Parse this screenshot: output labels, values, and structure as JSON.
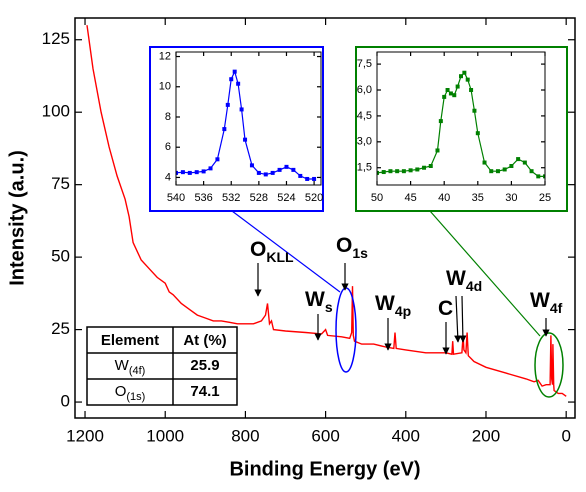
{
  "chart_data": [
    {
      "type": "line",
      "xlabel": "Binding Energy (eV)",
      "ylabel": "Intensity (a.u.)",
      "xlim": [
        1225,
        -22
      ],
      "ylim": [
        -5.5,
        132.5
      ],
      "xticks": [
        1200,
        1000,
        800,
        600,
        400,
        200,
        0
      ],
      "yticks": [
        0,
        25,
        50,
        75,
        100,
        125
      ],
      "series": [
        {
          "color": "#ff0000",
          "x": [
            1195,
            1180,
            1160,
            1140,
            1120,
            1100,
            1090,
            1080,
            1060,
            1040,
            1020,
            1000,
            990,
            980,
            960,
            940,
            920,
            900,
            880,
            860,
            840,
            820,
            800,
            780,
            760,
            750,
            745,
            740,
            735,
            730,
            700,
            650,
            610,
            600,
            595,
            560,
            540,
            535,
            533,
            531,
            528,
            510,
            480,
            450,
            430,
            427,
            424,
            400,
            350,
            300,
            285,
            283,
            281,
            260,
            257,
            255,
            250,
            247,
            244,
            230,
            200,
            150,
            100,
            80,
            70,
            60,
            50,
            40,
            38,
            36,
            34,
            33,
            31,
            30,
            20,
            10,
            0
          ],
          "values": [
            130,
            115,
            100,
            88,
            78,
            70,
            64,
            55,
            49,
            46,
            43,
            41,
            38,
            37,
            34,
            32,
            30,
            29,
            28,
            28,
            27.5,
            27,
            27,
            27,
            28,
            30,
            34,
            27,
            28,
            25,
            24.5,
            24,
            23.5,
            25,
            23,
            22.5,
            22,
            24,
            40,
            23,
            21,
            20,
            20,
            19,
            18.5,
            24,
            18.5,
            18,
            17,
            17,
            16.5,
            21,
            16.5,
            17,
            23,
            18,
            17,
            24,
            16,
            14,
            12,
            10,
            8,
            7,
            7.5,
            5.5,
            6,
            6,
            23,
            8,
            6,
            20,
            6,
            4,
            3,
            3,
            2
          ]
        }
      ],
      "annotations": [
        {
          "text": "O",
          "sub": "KLL"
        },
        {
          "text": "W",
          "sub": "s"
        },
        {
          "text": "O",
          "sub": "1s"
        },
        {
          "text": "W",
          "sub": "4p"
        },
        {
          "text": "C",
          "sub": null
        },
        {
          "text": "W",
          "sub": "4d"
        },
        {
          "text": "W",
          "sub": "4f"
        }
      ],
      "table": {
        "header": [
          "Element",
          "At (%)"
        ],
        "rows": [
          {
            "element": "W",
            "sub": "(4f)",
            "at": 25.9
          },
          {
            "element": "O",
            "sub": "(1s)",
            "at": 74.1
          }
        ]
      }
    },
    {
      "type": "line",
      "xlim": [
        540,
        519
      ],
      "ylim": [
        3.5,
        12.3
      ],
      "xticks": [
        540,
        536,
        532,
        528,
        524,
        520
      ],
      "yticks": [
        4,
        6,
        8,
        10,
        12
      ],
      "series": [
        {
          "color": "#0000ff",
          "x": [
            540,
            539,
            538,
            537,
            536,
            535,
            534,
            533,
            532.5,
            532,
            531.5,
            531,
            530.5,
            530,
            529,
            528,
            527,
            526,
            525,
            524,
            523,
            522,
            521,
            520
          ],
          "values": [
            4.3,
            4.35,
            4.3,
            4.35,
            4.4,
            4.6,
            5.2,
            7.2,
            8.8,
            10.5,
            11.0,
            10.2,
            8.5,
            6.5,
            4.8,
            4.3,
            4.2,
            4.3,
            4.5,
            4.7,
            4.5,
            4.1,
            3.9,
            3.9
          ]
        }
      ]
    },
    {
      "type": "line",
      "xlim": [
        50,
        25
      ],
      "ylim": [
        0.5,
        8.2
      ],
      "xticks": [
        50,
        45,
        40,
        35,
        30,
        25
      ],
      "yticks": [
        {
          "value": 1.5,
          "label": "1,5"
        },
        {
          "value": 3,
          "label": "3,0"
        },
        {
          "value": 4.5,
          "label": "4,5"
        },
        {
          "value": 6,
          "label": "6,0"
        },
        {
          "value": 7.5,
          "label": "7,5"
        }
      ],
      "series": [
        {
          "color": "#008000",
          "x": [
            50,
            49,
            48,
            47,
            46,
            45,
            44,
            43,
            42,
            41,
            40.5,
            40,
            39.5,
            39,
            38.5,
            38,
            37.5,
            37,
            36.5,
            36,
            35.5,
            35,
            34,
            33,
            32,
            31,
            30,
            29,
            28,
            27,
            26,
            25
          ],
          "values": [
            1.2,
            1.25,
            1.3,
            1.3,
            1.3,
            1.35,
            1.4,
            1.5,
            1.6,
            2.5,
            4.2,
            5.6,
            6.0,
            5.8,
            5.7,
            6.2,
            6.8,
            7.0,
            6.6,
            6.0,
            4.8,
            3.5,
            1.8,
            1.3,
            1.3,
            1.4,
            1.6,
            2.0,
            1.8,
            1.3,
            1.0,
            1.0
          ]
        }
      ]
    }
  ]
}
